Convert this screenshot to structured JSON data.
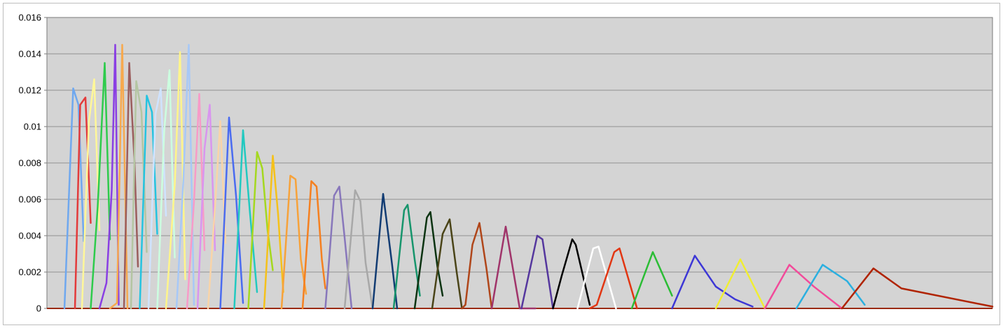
{
  "chart_data": {
    "type": "line",
    "title": "",
    "xlabel": "",
    "ylabel": "",
    "ylim": [
      0,
      0.016
    ],
    "y_ticks": [
      "0",
      "0.002",
      "0.004",
      "0.006",
      "0.008",
      "0.01",
      "0.012",
      "0.014",
      "0.016"
    ],
    "y_tick_values": [
      0,
      0.002,
      0.004,
      0.006,
      0.008,
      0.01,
      0.012,
      0.014,
      0.016
    ],
    "xlim": [
      0,
      540
    ],
    "grid": true,
    "legend": "none",
    "background": "#d4d4d4",
    "gridline_color": "#8f8f8f",
    "series": [
      {
        "color": "#6fa8ef",
        "points": [
          [
            10,
            0
          ],
          [
            15,
            0.0121
          ],
          [
            18,
            0.0112
          ],
          [
            21,
            0.0037
          ]
        ]
      },
      {
        "color": "#e33b3b",
        "points": [
          [
            16,
            0
          ],
          [
            19,
            0.0112
          ],
          [
            22,
            0.0116
          ],
          [
            25,
            0.0047
          ]
        ]
      },
      {
        "color": "#fff799",
        "points": [
          [
            20,
            0
          ],
          [
            24,
            0.0103
          ],
          [
            27,
            0.0126
          ],
          [
            30,
            0.0043
          ]
        ]
      },
      {
        "color": "#2ecb4c",
        "points": [
          [
            25,
            0
          ],
          [
            29,
            0.0056
          ],
          [
            33,
            0.0135
          ],
          [
            36,
            0.0038
          ]
        ]
      },
      {
        "color": "#8a3fe3",
        "points": [
          [
            30,
            0
          ],
          [
            34,
            0.0014
          ],
          [
            37,
            0.0065
          ],
          [
            39,
            0.0145
          ],
          [
            41,
            0.0002
          ]
        ]
      },
      {
        "color": "#f7a94e",
        "points": [
          [
            36,
            0
          ],
          [
            40,
            0.0003
          ],
          [
            43,
            0.0145
          ],
          [
            46,
            0
          ]
        ]
      },
      {
        "color": "#9b5d5d",
        "points": [
          [
            44,
            0
          ],
          [
            47,
            0.0135
          ],
          [
            50,
            0.0081
          ],
          [
            52,
            0.0023
          ]
        ]
      },
      {
        "color": "#b4c5a2",
        "points": [
          [
            48,
            0
          ],
          [
            51,
            0.0125
          ],
          [
            54,
            0.0108
          ],
          [
            57,
            0.0031
          ]
        ]
      },
      {
        "color": "#25c3e0",
        "points": [
          [
            53,
            0
          ],
          [
            57,
            0.0117
          ],
          [
            60,
            0.0108
          ],
          [
            63,
            0.0041
          ]
        ]
      },
      {
        "color": "#cfe3ff",
        "points": [
          [
            58,
            0
          ],
          [
            62,
            0.0107
          ],
          [
            65,
            0.0121
          ],
          [
            68,
            0.0051
          ]
        ]
      },
      {
        "color": "#ccffe0",
        "points": [
          [
            63,
            0
          ],
          [
            67,
            0.0098
          ],
          [
            70,
            0.0131
          ],
          [
            73,
            0.0028
          ]
        ]
      },
      {
        "color": "#fff58a",
        "points": [
          [
            68,
            0
          ],
          [
            73,
            0.0068
          ],
          [
            76,
            0.0141
          ],
          [
            79,
            0.0016
          ]
        ]
      },
      {
        "color": "#a7c8f7",
        "points": [
          [
            74,
            0
          ],
          [
            78,
            0.0072
          ],
          [
            81,
            0.0145
          ],
          [
            84,
            0.0002
          ]
        ]
      },
      {
        "color": "#f79bc8",
        "points": [
          [
            80,
            0
          ],
          [
            84,
            0.0059
          ],
          [
            87,
            0.0118
          ],
          [
            90,
            0.0032
          ]
        ]
      },
      {
        "color": "#d995ef",
        "points": [
          [
            86,
            0
          ],
          [
            90,
            0.0088
          ],
          [
            93,
            0.0112
          ],
          [
            96,
            0.0032
          ]
        ]
      },
      {
        "color": "#f9d4a8",
        "points": [
          [
            92,
            0
          ],
          [
            96,
            0.0056
          ],
          [
            99,
            0.0103
          ],
          [
            102,
            0.0036
          ]
        ]
      },
      {
        "color": "#4a6bf0",
        "points": [
          [
            99,
            0
          ],
          [
            104,
            0.0105
          ],
          [
            108,
            0.0062
          ],
          [
            112,
            0.0003
          ]
        ]
      },
      {
        "color": "#22c9c0",
        "points": [
          [
            107,
            0
          ],
          [
            112,
            0.0098
          ],
          [
            116,
            0.0052
          ],
          [
            120,
            0.0009
          ]
        ]
      },
      {
        "color": "#a4d81f",
        "points": [
          [
            115,
            0
          ],
          [
            120,
            0.0086
          ],
          [
            123,
            0.0077
          ],
          [
            126,
            0.0043
          ],
          [
            129,
            0.0021
          ]
        ]
      },
      {
        "color": "#f5c11a",
        "points": [
          [
            124,
            0
          ],
          [
            129,
            0.0084
          ],
          [
            132,
            0.0052
          ],
          [
            135,
            0.0009
          ]
        ]
      },
      {
        "color": "#f7a23a",
        "points": [
          [
            134,
            0
          ],
          [
            139,
            0.0073
          ],
          [
            142,
            0.0071
          ],
          [
            145,
            0.0027
          ],
          [
            148,
            0.0008
          ]
        ]
      },
      {
        "color": "#f58020",
        "points": [
          [
            146,
            0
          ],
          [
            151,
            0.007
          ],
          [
            154,
            0.0067
          ],
          [
            157,
            0.0027
          ],
          [
            159,
            0.0011
          ]
        ]
      },
      {
        "color": "#8877bb",
        "points": [
          [
            159,
            0
          ],
          [
            164,
            0.0062
          ],
          [
            167,
            0.0067
          ],
          [
            170,
            0.0039
          ],
          [
            174,
            0
          ]
        ]
      },
      {
        "color": "#a8a8a8",
        "points": [
          [
            170,
            0
          ],
          [
            176,
            0.0065
          ],
          [
            179,
            0.0059
          ],
          [
            182,
            0.0025
          ],
          [
            186,
            0
          ]
        ]
      },
      {
        "color": "#123c73",
        "points": [
          [
            186,
            0
          ],
          [
            192,
            0.0063
          ],
          [
            197,
            0.0025
          ],
          [
            200,
            0
          ]
        ]
      },
      {
        "color": "#17956c",
        "points": [
          [
            198,
            0
          ],
          [
            204,
            0.0054
          ],
          [
            206,
            0.0057
          ],
          [
            210,
            0.0027
          ],
          [
            213,
            0.0007
          ]
        ]
      },
      {
        "color": "#0b3311",
        "points": [
          [
            210,
            0
          ],
          [
            217,
            0.005
          ],
          [
            219,
            0.0053
          ],
          [
            223,
            0.0023
          ],
          [
            226,
            0.0007
          ]
        ]
      },
      {
        "color": "#4a4418",
        "points": [
          [
            220,
            0
          ],
          [
            226,
            0.0041
          ],
          [
            230,
            0.0049
          ],
          [
            234,
            0.002
          ],
          [
            237,
            0
          ]
        ]
      },
      {
        "color": "#b0461a",
        "points": [
          [
            237,
            0
          ],
          [
            239,
            0.0002
          ],
          [
            243,
            0.0035
          ],
          [
            247,
            0.0047
          ],
          [
            251,
            0.0022
          ],
          [
            254,
            0
          ]
        ]
      },
      {
        "color": "#a0346a",
        "points": [
          [
            254,
            0
          ],
          [
            262,
            0.0045
          ],
          [
            270,
            0
          ],
          [
            279,
            0
          ]
        ]
      },
      {
        "color": "#55379e",
        "points": [
          [
            271,
            0
          ],
          [
            280,
            0.004
          ],
          [
            283,
            0.0038
          ],
          [
            289,
            0
          ]
        ]
      },
      {
        "color": "#000000",
        "points": [
          [
            289,
            0
          ],
          [
            294,
            0.0018
          ],
          [
            300,
            0.0038
          ],
          [
            302,
            0.0035
          ],
          [
            310,
            0.0002
          ]
        ]
      },
      {
        "color": "#ffffff",
        "points": [
          [
            303,
            0
          ],
          [
            312,
            0.0033
          ],
          [
            315,
            0.0034
          ],
          [
            325,
            0
          ]
        ]
      },
      {
        "color": "#e23612",
        "points": [
          [
            310,
            0
          ],
          [
            314,
            0.0002
          ],
          [
            324,
            0.0031
          ],
          [
            327,
            0.0033
          ],
          [
            337,
            0
          ]
        ]
      },
      {
        "color": "#2bbd35",
        "points": [
          [
            334,
            0
          ],
          [
            346,
            0.0031
          ],
          [
            357,
            0.0007
          ]
        ]
      },
      {
        "color": "#3d37d6",
        "points": [
          [
            357,
            0
          ],
          [
            370,
            0.0029
          ],
          [
            382,
            0.0012
          ],
          [
            393,
            0.0005
          ],
          [
            403,
            0.0001
          ]
        ]
      },
      {
        "color": "#f0ee32",
        "points": [
          [
            382,
            0
          ],
          [
            396,
            0.0027
          ],
          [
            410,
            0
          ]
        ]
      },
      {
        "color": "#f24a9a",
        "points": [
          [
            410,
            0
          ],
          [
            424,
            0.0024
          ],
          [
            438,
            0.0012
          ],
          [
            454,
            0
          ]
        ]
      },
      {
        "color": "#2bb0e0",
        "points": [
          [
            428,
            0
          ],
          [
            443,
            0.0024
          ],
          [
            457,
            0.0015
          ],
          [
            467,
            0.0002
          ]
        ]
      },
      {
        "color": "#b02300",
        "points": [
          [
            454,
            0
          ],
          [
            472,
            0.0022
          ],
          [
            488,
            0.0011
          ],
          [
            540,
            0.0001
          ]
        ]
      }
    ]
  }
}
